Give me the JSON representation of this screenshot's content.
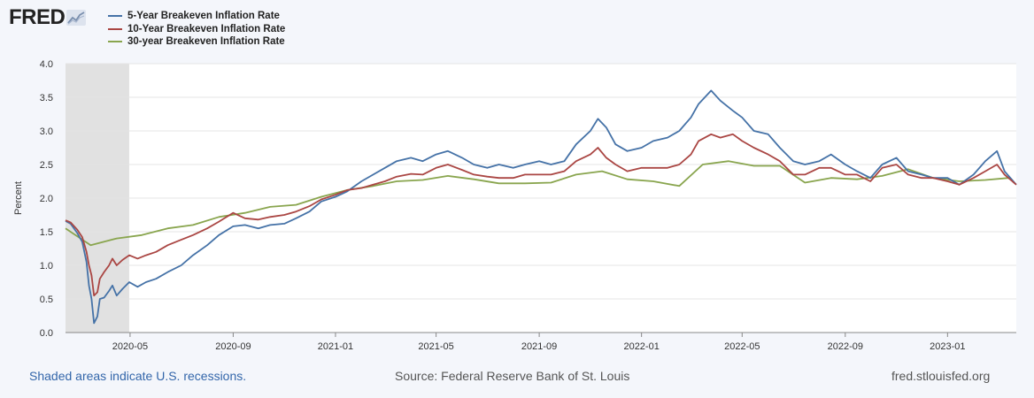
{
  "logo": {
    "text": "FRED",
    "icon": "fred-trend-icon"
  },
  "footer": {
    "recession_note": "Shaded areas indicate U.S. recessions.",
    "source": "Source: Federal Reserve Bank of St. Louis",
    "site": "fred.stlouisfed.org"
  },
  "colors": {
    "background": "#f4f6fb",
    "plot_bg": "#ffffff",
    "recession": "#e1e1e1",
    "grid": "#e4e4e4"
  },
  "chart_data": {
    "type": "line",
    "title": "",
    "xlabel": "",
    "ylabel": "Percent",
    "ylim": [
      0.0,
      4.0
    ],
    "xlim": [
      "2020-02-14",
      "2023-03-24"
    ],
    "grid": true,
    "legend_position": "top-left",
    "yticks": [
      "0.0",
      "0.5",
      "1.0",
      "1.5",
      "2.0",
      "2.5",
      "3.0",
      "3.5",
      "4.0"
    ],
    "xticks": [
      "2020-05",
      "2020-09",
      "2021-01",
      "2021-05",
      "2021-09",
      "2022-01",
      "2022-05",
      "2022-09",
      "2023-01"
    ],
    "recession": {
      "start": "2020-02-14",
      "end": "2020-04-30"
    },
    "series": [
      {
        "name": "5-Year Breakeven Inflation Rate",
        "color": "#4572a7",
        "points": [
          [
            "2020-02-14",
            1.66
          ],
          [
            "2020-02-20",
            1.62
          ],
          [
            "2020-02-28",
            1.48
          ],
          [
            "2020-03-05",
            1.35
          ],
          [
            "2020-03-10",
            1.05
          ],
          [
            "2020-03-13",
            0.7
          ],
          [
            "2020-03-16",
            0.5
          ],
          [
            "2020-03-19",
            0.14
          ],
          [
            "2020-03-23",
            0.24
          ],
          [
            "2020-03-26",
            0.5
          ],
          [
            "2020-03-31",
            0.52
          ],
          [
            "2020-04-06",
            0.62
          ],
          [
            "2020-04-10",
            0.7
          ],
          [
            "2020-04-15",
            0.55
          ],
          [
            "2020-04-22",
            0.65
          ],
          [
            "2020-04-30",
            0.75
          ],
          [
            "2020-05-10",
            0.68
          ],
          [
            "2020-05-20",
            0.75
          ],
          [
            "2020-06-01",
            0.8
          ],
          [
            "2020-06-15",
            0.9
          ],
          [
            "2020-07-01",
            1.0
          ],
          [
            "2020-07-15",
            1.15
          ],
          [
            "2020-08-01",
            1.3
          ],
          [
            "2020-08-15",
            1.45
          ],
          [
            "2020-09-01",
            1.58
          ],
          [
            "2020-09-15",
            1.6
          ],
          [
            "2020-10-01",
            1.55
          ],
          [
            "2020-10-15",
            1.6
          ],
          [
            "2020-11-01",
            1.62
          ],
          [
            "2020-11-15",
            1.7
          ],
          [
            "2020-12-01",
            1.8
          ],
          [
            "2020-12-15",
            1.95
          ],
          [
            "2021-01-01",
            2.02
          ],
          [
            "2021-01-15",
            2.1
          ],
          [
            "2021-02-01",
            2.25
          ],
          [
            "2021-02-15",
            2.35
          ],
          [
            "2021-03-01",
            2.45
          ],
          [
            "2021-03-15",
            2.55
          ],
          [
            "2021-04-01",
            2.6
          ],
          [
            "2021-04-15",
            2.55
          ],
          [
            "2021-05-01",
            2.65
          ],
          [
            "2021-05-15",
            2.7
          ],
          [
            "2021-06-01",
            2.6
          ],
          [
            "2021-06-15",
            2.5
          ],
          [
            "2021-07-01",
            2.45
          ],
          [
            "2021-07-15",
            2.5
          ],
          [
            "2021-08-01",
            2.45
          ],
          [
            "2021-08-15",
            2.5
          ],
          [
            "2021-09-01",
            2.55
          ],
          [
            "2021-09-15",
            2.5
          ],
          [
            "2021-10-01",
            2.55
          ],
          [
            "2021-10-15",
            2.8
          ],
          [
            "2021-11-01",
            3.0
          ],
          [
            "2021-11-10",
            3.18
          ],
          [
            "2021-11-20",
            3.05
          ],
          [
            "2021-12-01",
            2.8
          ],
          [
            "2021-12-15",
            2.7
          ],
          [
            "2022-01-01",
            2.75
          ],
          [
            "2022-01-15",
            2.85
          ],
          [
            "2022-02-01",
            2.9
          ],
          [
            "2022-02-15",
            3.0
          ],
          [
            "2022-03-01",
            3.2
          ],
          [
            "2022-03-10",
            3.4
          ],
          [
            "2022-03-25",
            3.6
          ],
          [
            "2022-04-05",
            3.45
          ],
          [
            "2022-04-20",
            3.3
          ],
          [
            "2022-05-01",
            3.2
          ],
          [
            "2022-05-15",
            3.0
          ],
          [
            "2022-06-01",
            2.95
          ],
          [
            "2022-06-15",
            2.75
          ],
          [
            "2022-07-01",
            2.55
          ],
          [
            "2022-07-15",
            2.5
          ],
          [
            "2022-08-01",
            2.55
          ],
          [
            "2022-08-15",
            2.65
          ],
          [
            "2022-09-01",
            2.5
          ],
          [
            "2022-09-15",
            2.4
          ],
          [
            "2022-10-01",
            2.3
          ],
          [
            "2022-10-15",
            2.5
          ],
          [
            "2022-11-01",
            2.6
          ],
          [
            "2022-11-15",
            2.4
          ],
          [
            "2022-12-01",
            2.35
          ],
          [
            "2022-12-15",
            2.3
          ],
          [
            "2023-01-01",
            2.3
          ],
          [
            "2023-01-15",
            2.2
          ],
          [
            "2023-02-01",
            2.35
          ],
          [
            "2023-02-15",
            2.55
          ],
          [
            "2023-03-01",
            2.7
          ],
          [
            "2023-03-10",
            2.4
          ],
          [
            "2023-03-24",
            2.2
          ]
        ]
      },
      {
        "name": "10-Year Breakeven Inflation Rate",
        "color": "#aa4643",
        "points": [
          [
            "2020-02-14",
            1.67
          ],
          [
            "2020-02-20",
            1.64
          ],
          [
            "2020-02-28",
            1.53
          ],
          [
            "2020-03-05",
            1.42
          ],
          [
            "2020-03-10",
            1.2
          ],
          [
            "2020-03-13",
            1.0
          ],
          [
            "2020-03-16",
            0.85
          ],
          [
            "2020-03-19",
            0.55
          ],
          [
            "2020-03-23",
            0.6
          ],
          [
            "2020-03-26",
            0.8
          ],
          [
            "2020-03-31",
            0.9
          ],
          [
            "2020-04-06",
            1.0
          ],
          [
            "2020-04-10",
            1.1
          ],
          [
            "2020-04-15",
            1.0
          ],
          [
            "2020-04-22",
            1.08
          ],
          [
            "2020-04-30",
            1.15
          ],
          [
            "2020-05-10",
            1.1
          ],
          [
            "2020-05-20",
            1.15
          ],
          [
            "2020-06-01",
            1.2
          ],
          [
            "2020-06-15",
            1.3
          ],
          [
            "2020-07-01",
            1.38
          ],
          [
            "2020-07-15",
            1.45
          ],
          [
            "2020-08-01",
            1.55
          ],
          [
            "2020-08-15",
            1.65
          ],
          [
            "2020-09-01",
            1.78
          ],
          [
            "2020-09-15",
            1.7
          ],
          [
            "2020-10-01",
            1.68
          ],
          [
            "2020-10-15",
            1.72
          ],
          [
            "2020-11-01",
            1.75
          ],
          [
            "2020-11-15",
            1.8
          ],
          [
            "2020-12-01",
            1.88
          ],
          [
            "2020-12-15",
            1.98
          ],
          [
            "2021-01-01",
            2.05
          ],
          [
            "2021-01-15",
            2.12
          ],
          [
            "2021-02-01",
            2.15
          ],
          [
            "2021-02-15",
            2.2
          ],
          [
            "2021-03-01",
            2.25
          ],
          [
            "2021-03-15",
            2.32
          ],
          [
            "2021-04-01",
            2.36
          ],
          [
            "2021-04-15",
            2.35
          ],
          [
            "2021-05-01",
            2.45
          ],
          [
            "2021-05-15",
            2.5
          ],
          [
            "2021-06-01",
            2.42
          ],
          [
            "2021-06-15",
            2.35
          ],
          [
            "2021-07-01",
            2.32
          ],
          [
            "2021-07-15",
            2.3
          ],
          [
            "2021-08-01",
            2.3
          ],
          [
            "2021-08-15",
            2.35
          ],
          [
            "2021-09-01",
            2.35
          ],
          [
            "2021-09-15",
            2.35
          ],
          [
            "2021-10-01",
            2.4
          ],
          [
            "2021-10-15",
            2.55
          ],
          [
            "2021-11-01",
            2.65
          ],
          [
            "2021-11-10",
            2.75
          ],
          [
            "2021-11-20",
            2.6
          ],
          [
            "2021-12-01",
            2.5
          ],
          [
            "2021-12-15",
            2.4
          ],
          [
            "2022-01-01",
            2.45
          ],
          [
            "2022-01-15",
            2.45
          ],
          [
            "2022-02-01",
            2.45
          ],
          [
            "2022-02-15",
            2.5
          ],
          [
            "2022-03-01",
            2.65
          ],
          [
            "2022-03-10",
            2.85
          ],
          [
            "2022-03-25",
            2.95
          ],
          [
            "2022-04-05",
            2.9
          ],
          [
            "2022-04-20",
            2.95
          ],
          [
            "2022-05-01",
            2.85
          ],
          [
            "2022-05-15",
            2.75
          ],
          [
            "2022-06-01",
            2.65
          ],
          [
            "2022-06-15",
            2.55
          ],
          [
            "2022-07-01",
            2.35
          ],
          [
            "2022-07-15",
            2.35
          ],
          [
            "2022-08-01",
            2.45
          ],
          [
            "2022-08-15",
            2.45
          ],
          [
            "2022-09-01",
            2.35
          ],
          [
            "2022-09-15",
            2.35
          ],
          [
            "2022-10-01",
            2.25
          ],
          [
            "2022-10-15",
            2.45
          ],
          [
            "2022-11-01",
            2.5
          ],
          [
            "2022-11-15",
            2.35
          ],
          [
            "2022-12-01",
            2.3
          ],
          [
            "2022-12-15",
            2.3
          ],
          [
            "2023-01-01",
            2.25
          ],
          [
            "2023-01-15",
            2.2
          ],
          [
            "2023-02-01",
            2.3
          ],
          [
            "2023-02-15",
            2.4
          ],
          [
            "2023-03-01",
            2.5
          ],
          [
            "2023-03-10",
            2.35
          ],
          [
            "2023-03-24",
            2.2
          ]
        ]
      },
      {
        "name": "30-year Breakeven Inflation Rate",
        "color": "#89a54e",
        "points": [
          [
            "2020-02-14",
            1.55
          ],
          [
            "2020-03-15",
            1.3
          ],
          [
            "2020-04-15",
            1.4
          ],
          [
            "2020-05-15",
            1.45
          ],
          [
            "2020-06-15",
            1.55
          ],
          [
            "2020-07-15",
            1.6
          ],
          [
            "2020-08-15",
            1.72
          ],
          [
            "2020-09-15",
            1.78
          ],
          [
            "2020-10-15",
            1.87
          ],
          [
            "2020-11-15",
            1.9
          ],
          [
            "2020-12-15",
            2.02
          ],
          [
            "2021-01-15",
            2.12
          ],
          [
            "2021-02-15",
            2.18
          ],
          [
            "2021-03-15",
            2.25
          ],
          [
            "2021-04-15",
            2.27
          ],
          [
            "2021-05-15",
            2.33
          ],
          [
            "2021-06-15",
            2.28
          ],
          [
            "2021-07-15",
            2.22
          ],
          [
            "2021-08-15",
            2.22
          ],
          [
            "2021-09-15",
            2.23
          ],
          [
            "2021-10-15",
            2.35
          ],
          [
            "2021-11-15",
            2.4
          ],
          [
            "2021-12-15",
            2.28
          ],
          [
            "2022-01-15",
            2.25
          ],
          [
            "2022-02-15",
            2.18
          ],
          [
            "2022-03-15",
            2.5
          ],
          [
            "2022-04-15",
            2.55
          ],
          [
            "2022-05-15",
            2.48
          ],
          [
            "2022-06-15",
            2.48
          ],
          [
            "2022-07-15",
            2.23
          ],
          [
            "2022-08-15",
            2.3
          ],
          [
            "2022-09-15",
            2.28
          ],
          [
            "2022-10-15",
            2.33
          ],
          [
            "2022-11-15",
            2.43
          ],
          [
            "2022-12-15",
            2.3
          ],
          [
            "2023-01-15",
            2.25
          ],
          [
            "2023-02-15",
            2.27
          ],
          [
            "2023-03-15",
            2.3
          ]
        ]
      }
    ]
  }
}
